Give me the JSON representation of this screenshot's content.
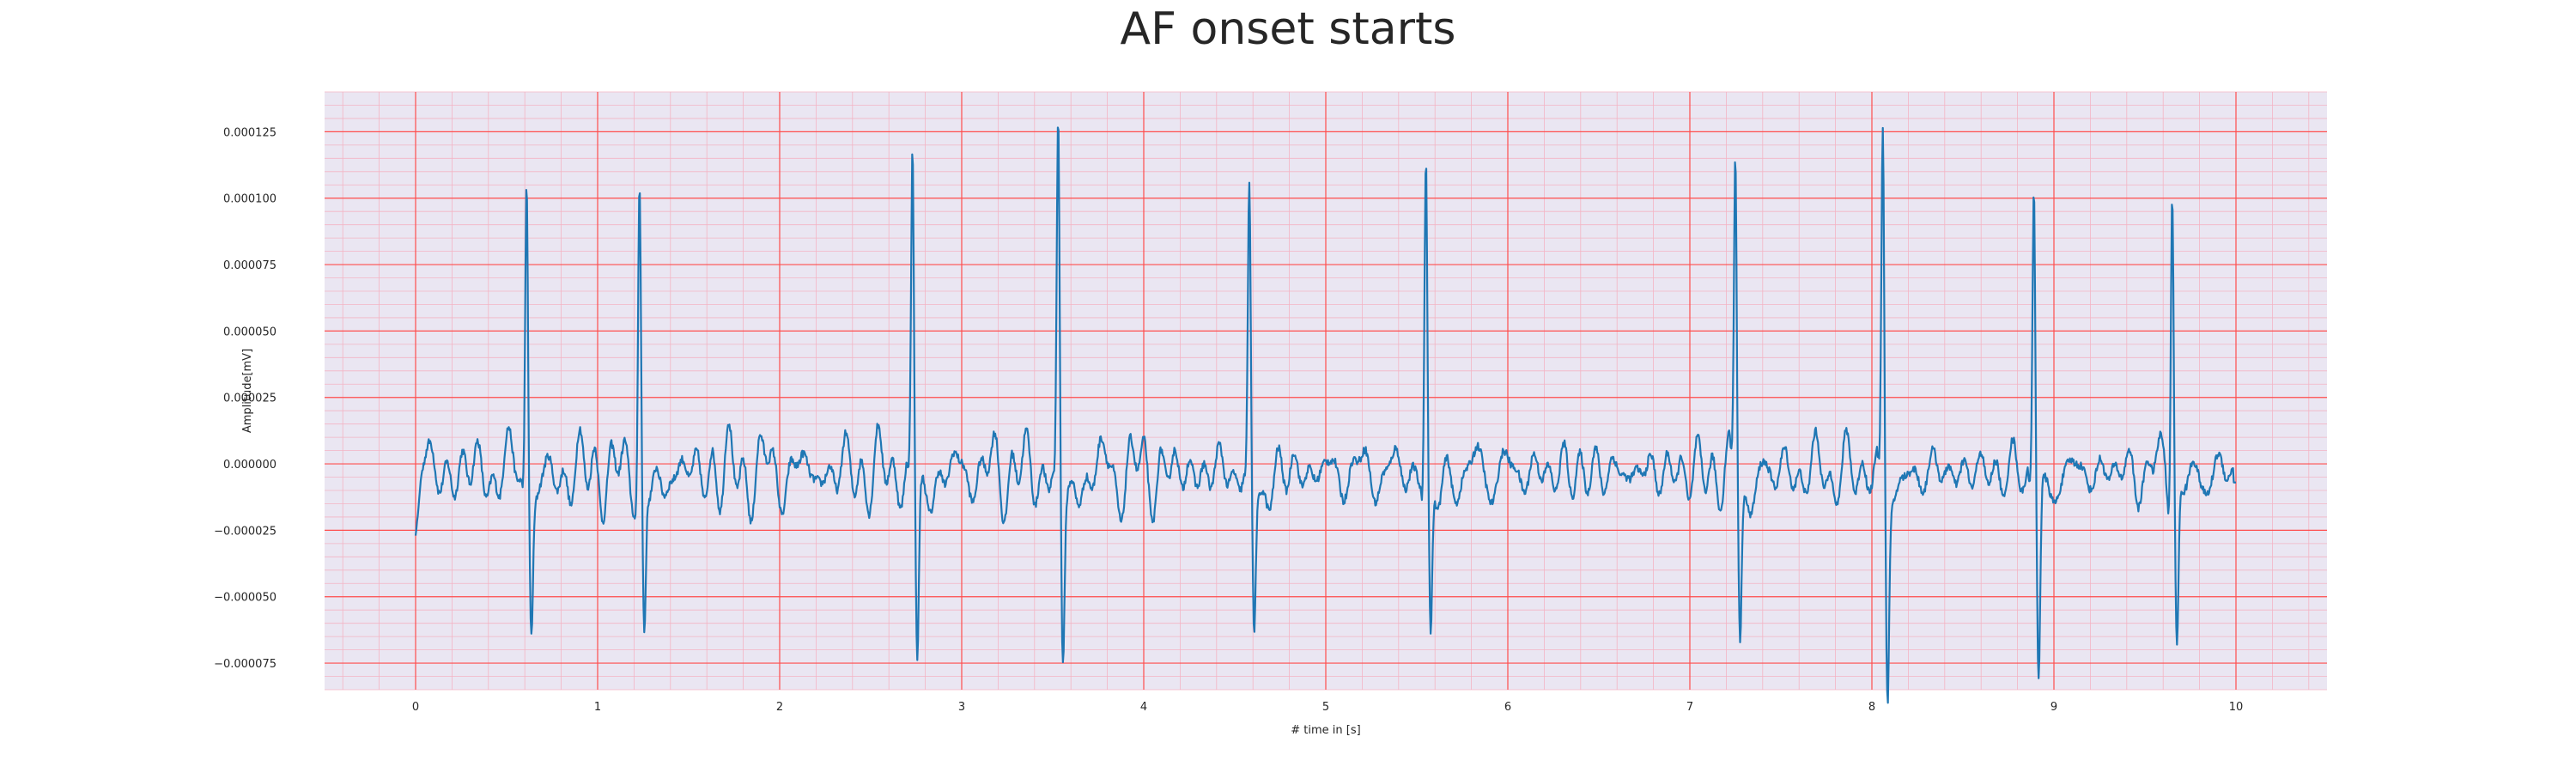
{
  "chart_data": {
    "type": "line",
    "title": "AF onset starts",
    "xlabel": "# time in [s]",
    "ylabel": "Amplitude[mV]",
    "xlim": [
      -0.5,
      10.5
    ],
    "ylim": [
      -8.5e-05,
      0.00014
    ],
    "xticks": [
      0,
      1,
      2,
      3,
      4,
      5,
      6,
      7,
      8,
      9,
      10
    ],
    "xtick_labels": [
      "0",
      "1",
      "2",
      "3",
      "4",
      "5",
      "6",
      "7",
      "8",
      "9",
      "10"
    ],
    "yticks": [
      -7.5e-05,
      -5e-05,
      -2.5e-05,
      0.0,
      2.5e-05,
      5e-05,
      7.5e-05,
      0.0001,
      0.000125
    ],
    "ytick_labels": [
      "−0.000075",
      "−0.000050",
      "−0.000025",
      "0.000000",
      "0.000025",
      "0.000050",
      "0.000075",
      "0.000100",
      "0.000125"
    ],
    "grid": true,
    "grid_style": "ECG paper: major red lines at ticks, minor light red lines",
    "background_color": "#eae6f2",
    "major_grid_color": "#ff4d4d",
    "minor_grid_color": "#f3b4c4",
    "series": [
      {
        "color": "#1f77b4",
        "sampling": "10 s record; baseline fibrillatory activity with R-peaks listed below",
        "r_peaks": [
          {
            "t": 0.61,
            "r": 0.000117,
            "s": -4.7e-05
          },
          {
            "t": 1.23,
            "r": 0.000111,
            "s": -5.8e-05
          },
          {
            "t": 2.73,
            "r": 0.00012,
            "s": -6.6e-05
          },
          {
            "t": 3.53,
            "r": 0.000128,
            "s": -6.6e-05
          },
          {
            "t": 4.58,
            "r": 0.000103,
            "s": -5.5e-05
          },
          {
            "t": 5.55,
            "r": 0.000119,
            "s": -6e-05
          },
          {
            "t": 7.25,
            "r": 0.000122,
            "s": -5.6e-05
          },
          {
            "t": 8.06,
            "r": 0.00013,
            "s": -7.4e-05
          },
          {
            "t": 8.89,
            "r": 0.00011,
            "s": -7.1e-05
          },
          {
            "t": 9.65,
            "r": 0.000121,
            "s": -5.6e-05
          }
        ],
        "baseline_start": -2.7e-05,
        "baseline_end": -7e-06,
        "baseline_noise_amplitude": 1.2e-05
      }
    ]
  }
}
